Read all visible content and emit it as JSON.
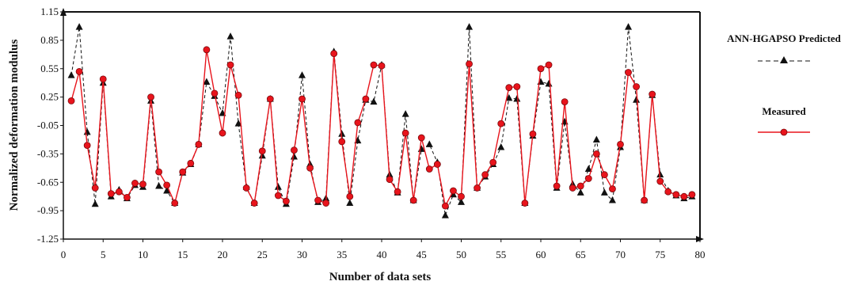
{
  "chart_data": {
    "type": "line",
    "xlabel": "Number of data sets",
    "ylabel": "Normalized deformation modulus",
    "xlim": [
      0,
      80
    ],
    "ylim": [
      -1.25,
      1.15
    ],
    "xticks": [
      "0",
      "5",
      "10",
      "15",
      "20",
      "25",
      "30",
      "35",
      "40",
      "45",
      "50",
      "55",
      "60",
      "65",
      "70",
      "75",
      "80"
    ],
    "yticks": [
      "1.15",
      "0.85",
      "0.55",
      "0.25",
      "-0.05",
      "-0.35",
      "-0.65",
      "-0.95",
      "-1.25"
    ],
    "grid": false,
    "legend_position": "right",
    "x": [
      1,
      2,
      3,
      4,
      5,
      6,
      7,
      8,
      9,
      10,
      11,
      12,
      13,
      14,
      15,
      16,
      17,
      18,
      19,
      20,
      21,
      22,
      23,
      24,
      25,
      26,
      27,
      28,
      29,
      30,
      31,
      32,
      33,
      34,
      35,
      36,
      37,
      38,
      39,
      40,
      41,
      42,
      43,
      44,
      45,
      46,
      47,
      48,
      49,
      50,
      51,
      52,
      53,
      54,
      55,
      56,
      57,
      58,
      59,
      60,
      61,
      62,
      63,
      64,
      65,
      66,
      67,
      68,
      69,
      70,
      71,
      72,
      73,
      74,
      75,
      76,
      77,
      78,
      79
    ],
    "series": [
      {
        "name": "ANN-HGAPSO Predicted",
        "color": "#111111",
        "line_style": "dashed",
        "marker": "triangle",
        "values": [
          0.48,
          0.99,
          -0.12,
          -0.88,
          0.4,
          -0.8,
          -0.73,
          -0.82,
          -0.68,
          -0.7,
          0.21,
          -0.69,
          -0.74,
          -0.87,
          -0.55,
          -0.46,
          -0.25,
          0.41,
          0.26,
          0.08,
          0.89,
          -0.03,
          -0.7,
          -0.87,
          -0.37,
          0.23,
          -0.7,
          -0.88,
          -0.38,
          0.48,
          -0.46,
          -0.86,
          -0.82,
          0.73,
          -0.14,
          -0.87,
          -0.21,
          0.22,
          0.2,
          0.59,
          -0.57,
          -0.76,
          0.07,
          -0.84,
          -0.3,
          -0.25,
          -0.44,
          -1.0,
          -0.78,
          -0.86,
          0.99,
          -0.71,
          -0.59,
          -0.46,
          -0.28,
          0.24,
          0.23,
          -0.87,
          -0.16,
          0.41,
          0.39,
          -0.71,
          -0.01,
          -0.67,
          -0.76,
          -0.51,
          -0.2,
          -0.76,
          -0.84,
          -0.28,
          0.99,
          0.22,
          -0.84,
          0.27,
          -0.57,
          -0.74,
          -0.79,
          -0.82,
          -0.8
        ]
      },
      {
        "name": "Measured",
        "color": "#e8141c",
        "line_style": "solid",
        "marker": "circle",
        "values": [
          0.21,
          0.52,
          -0.26,
          -0.71,
          0.44,
          -0.77,
          -0.75,
          -0.81,
          -0.66,
          -0.67,
          0.25,
          -0.54,
          -0.68,
          -0.87,
          -0.54,
          -0.45,
          -0.25,
          0.75,
          0.29,
          -0.13,
          0.59,
          0.27,
          -0.71,
          -0.87,
          -0.32,
          0.23,
          -0.79,
          -0.85,
          -0.31,
          0.23,
          -0.5,
          -0.84,
          -0.87,
          0.71,
          -0.22,
          -0.8,
          -0.02,
          0.23,
          0.59,
          0.58,
          -0.62,
          -0.75,
          -0.13,
          -0.84,
          -0.18,
          -0.51,
          -0.46,
          -0.9,
          -0.74,
          -0.8,
          0.6,
          -0.71,
          -0.57,
          -0.44,
          -0.03,
          0.35,
          0.36,
          -0.87,
          -0.14,
          0.55,
          0.59,
          -0.69,
          0.2,
          -0.71,
          -0.69,
          -0.61,
          -0.35,
          -0.57,
          -0.72,
          -0.25,
          0.51,
          0.36,
          -0.84,
          0.28,
          -0.64,
          -0.75,
          -0.78,
          -0.8,
          -0.78
        ]
      }
    ]
  }
}
